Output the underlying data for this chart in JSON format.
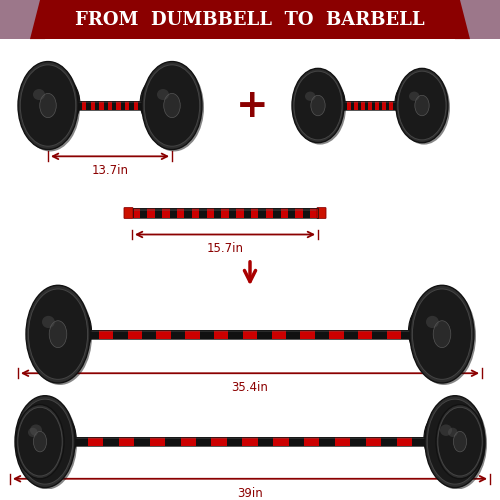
{
  "title": "FROM  DUMBBELL  TO  BARBELL",
  "title_bg_color": "#8B0000",
  "title_text_color": "#FFFFFF",
  "title_stripe_color": "#A8C8E8",
  "bg_color": "#FFFFFF",
  "dark_color": "#1a1a1a",
  "red_color": "#CC0000",
  "measurement_color": "#8B0000",
  "measurements": [
    "13.7in",
    "15.7in",
    "35.4in",
    "39in"
  ],
  "plus_color": "#8B0000",
  "arrow_color": "#AA0000",
  "plate_dark": "#222222",
  "plate_mid": "#333333",
  "plate_light": "#555555",
  "collar_red": "#CC1100",
  "collar_dark_red": "#880000"
}
